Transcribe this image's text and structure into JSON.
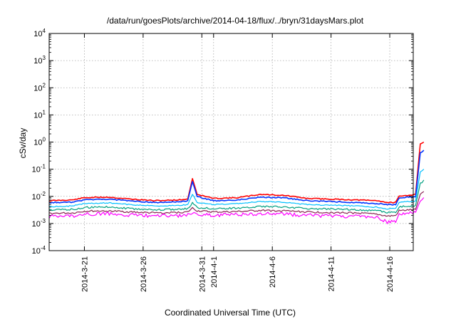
{
  "chart_data": {
    "type": "line",
    "title": "/data/run/goesPlots/archive/2014-04-18/flux/../bryn/31daysMars.plot",
    "xlabel": "Coordinated Universal Time (UTC)",
    "ylabel": "cSv/day",
    "x_range": [
      "2014-03-18",
      "2014-04-18"
    ],
    "yscale": "log",
    "ylim": [
      0.0001,
      10000
    ],
    "y_ticks": [
      {
        "value": 0.0001,
        "base": "10",
        "exp": "-4"
      },
      {
        "value": 0.001,
        "base": "10",
        "exp": "-3"
      },
      {
        "value": 0.01,
        "base": "10",
        "exp": "-2"
      },
      {
        "value": 0.1,
        "base": "10",
        "exp": "-1"
      },
      {
        "value": 1,
        "base": "10",
        "exp": "0"
      },
      {
        "value": 10,
        "base": "10",
        "exp": "1"
      },
      {
        "value": 100,
        "base": "10",
        "exp": "2"
      },
      {
        "value": 1000,
        "base": "10",
        "exp": "3"
      },
      {
        "value": 10000,
        "base": "10",
        "exp": "4"
      }
    ],
    "x_ticks": [
      {
        "label": "2014-3-21",
        "date": "2014-03-21"
      },
      {
        "label": "2014-3-26",
        "date": "2014-03-26"
      },
      {
        "label": "2014-3-31",
        "date": "2014-03-31"
      },
      {
        "label": "2014-4-1",
        "date": "2014-04-01"
      },
      {
        "label": "2014-4-6",
        "date": "2014-04-06"
      },
      {
        "label": "2014-4-11",
        "date": "2014-04-11"
      },
      {
        "label": "2014-4-16",
        "date": "2014-04-16"
      }
    ],
    "grid": true,
    "series": [
      {
        "color": "#ff0000",
        "values": [
          [
            "2014-03-18",
            0.007
          ],
          [
            "2014-03-20",
            0.0075
          ],
          [
            "2014-03-21",
            0.009
          ],
          [
            "2014-03-23",
            0.0095
          ],
          [
            "2014-03-25",
            0.008
          ],
          [
            "2014-03-27",
            0.007
          ],
          [
            "2014-03-29",
            0.0075
          ],
          [
            "2014-03-29.8",
            0.008
          ],
          [
            "2014-03-30.2",
            0.045
          ],
          [
            "2014-03-30.6",
            0.012
          ],
          [
            "2014-04-01",
            0.0085
          ],
          [
            "2014-04-03",
            0.009
          ],
          [
            "2014-04-05",
            0.012
          ],
          [
            "2014-04-07",
            0.011
          ],
          [
            "2014-04-09",
            0.0085
          ],
          [
            "2014-04-11",
            0.008
          ],
          [
            "2014-04-13",
            0.0075
          ],
          [
            "2014-04-15",
            0.007
          ],
          [
            "2014-04-15.8",
            0.006
          ],
          [
            "2014-04-16.5",
            0.006
          ],
          [
            "2014-04-16.8",
            0.01
          ],
          [
            "2014-04-17.5",
            0.011
          ],
          [
            "2014-04-18.2",
            0.012
          ],
          [
            "2014-04-18.6",
            0.9
          ],
          [
            "2014-04-18.9",
            1.0
          ]
        ]
      },
      {
        "color": "#0033ff",
        "values": [
          [
            "2014-03-18",
            0.006
          ],
          [
            "2014-03-20",
            0.0062
          ],
          [
            "2014-03-21",
            0.0075
          ],
          [
            "2014-03-23",
            0.008
          ],
          [
            "2014-03-25",
            0.0068
          ],
          [
            "2014-03-27",
            0.006
          ],
          [
            "2014-03-29",
            0.0063
          ],
          [
            "2014-03-29.8",
            0.007
          ],
          [
            "2014-03-30.2",
            0.035
          ],
          [
            "2014-03-30.6",
            0.01
          ],
          [
            "2014-04-01",
            0.007
          ],
          [
            "2014-04-03",
            0.0075
          ],
          [
            "2014-04-05",
            0.0095
          ],
          [
            "2014-04-07",
            0.009
          ],
          [
            "2014-04-09",
            0.007
          ],
          [
            "2014-04-11",
            0.0065
          ],
          [
            "2014-04-13",
            0.006
          ],
          [
            "2014-04-15",
            0.0055
          ],
          [
            "2014-04-15.8",
            0.005
          ],
          [
            "2014-04-16.5",
            0.005
          ],
          [
            "2014-04-16.8",
            0.0085
          ],
          [
            "2014-04-17.5",
            0.0095
          ],
          [
            "2014-04-18.2",
            0.0095
          ],
          [
            "2014-04-18.6",
            0.4
          ],
          [
            "2014-04-18.9",
            0.5
          ]
        ]
      },
      {
        "color": "#00bfff",
        "values": [
          [
            "2014-03-18",
            0.0042
          ],
          [
            "2014-03-20",
            0.0045
          ],
          [
            "2014-03-21",
            0.0055
          ],
          [
            "2014-03-23",
            0.0058
          ],
          [
            "2014-03-25",
            0.005
          ],
          [
            "2014-03-27",
            0.0045
          ],
          [
            "2014-03-29",
            0.0047
          ],
          [
            "2014-03-29.8",
            0.005
          ],
          [
            "2014-03-30.2",
            0.012
          ],
          [
            "2014-03-30.6",
            0.006
          ],
          [
            "2014-04-01",
            0.005
          ],
          [
            "2014-04-03",
            0.0055
          ],
          [
            "2014-04-05",
            0.0065
          ],
          [
            "2014-04-07",
            0.0062
          ],
          [
            "2014-04-09",
            0.005
          ],
          [
            "2014-04-11",
            0.0048
          ],
          [
            "2014-04-13",
            0.0045
          ],
          [
            "2014-04-15",
            0.004
          ],
          [
            "2014-04-15.8",
            0.0035
          ],
          [
            "2014-04-16.5",
            0.0036
          ],
          [
            "2014-04-16.8",
            0.006
          ],
          [
            "2014-04-17.5",
            0.0065
          ],
          [
            "2014-04-18.2",
            0.0068
          ],
          [
            "2014-04-18.6",
            0.08
          ],
          [
            "2014-04-18.9",
            0.1
          ]
        ]
      },
      {
        "color": "#00a080",
        "values": [
          [
            "2014-03-18",
            0.0032
          ],
          [
            "2014-03-20",
            0.0034
          ],
          [
            "2014-03-21",
            0.004
          ],
          [
            "2014-03-23",
            0.0042
          ],
          [
            "2014-03-25",
            0.0036
          ],
          [
            "2014-03-27",
            0.0033
          ],
          [
            "2014-03-29",
            0.0034
          ],
          [
            "2014-03-29.8",
            0.0036
          ],
          [
            "2014-03-30.2",
            0.006
          ],
          [
            "2014-03-30.6",
            0.004
          ],
          [
            "2014-04-01",
            0.0036
          ],
          [
            "2014-04-03",
            0.0038
          ],
          [
            "2014-04-05",
            0.0044
          ],
          [
            "2014-04-07",
            0.0042
          ],
          [
            "2014-04-09",
            0.0036
          ],
          [
            "2014-04-11",
            0.0035
          ],
          [
            "2014-04-13",
            0.0033
          ],
          [
            "2014-04-15",
            0.003
          ],
          [
            "2014-04-15.8",
            0.0026
          ],
          [
            "2014-04-16.5",
            0.0027
          ],
          [
            "2014-04-16.8",
            0.0042
          ],
          [
            "2014-04-17.5",
            0.0045
          ],
          [
            "2014-04-18.2",
            0.0047
          ],
          [
            "2014-04-18.6",
            0.03
          ],
          [
            "2014-04-18.9",
            0.04
          ]
        ]
      },
      {
        "color": "#8b2252",
        "values": [
          [
            "2014-03-18",
            0.0024
          ],
          [
            "2014-03-20",
            0.0025
          ],
          [
            "2014-03-21",
            0.0029
          ],
          [
            "2014-03-23",
            0.003
          ],
          [
            "2014-03-25",
            0.0027
          ],
          [
            "2014-03-27",
            0.0025
          ],
          [
            "2014-03-29",
            0.0026
          ],
          [
            "2014-03-29.8",
            0.0027
          ],
          [
            "2014-03-30.2",
            0.0038
          ],
          [
            "2014-03-30.6",
            0.003
          ],
          [
            "2014-04-01",
            0.0027
          ],
          [
            "2014-04-03",
            0.0028
          ],
          [
            "2014-04-05",
            0.0031
          ],
          [
            "2014-04-07",
            0.003
          ],
          [
            "2014-04-09",
            0.0027
          ],
          [
            "2014-04-11",
            0.0026
          ],
          [
            "2014-04-13",
            0.0025
          ],
          [
            "2014-04-15",
            0.0022
          ],
          [
            "2014-04-15.8",
            0.0019
          ],
          [
            "2014-04-16.5",
            0.002
          ],
          [
            "2014-04-16.8",
            0.003
          ],
          [
            "2014-04-17.5",
            0.0032
          ],
          [
            "2014-04-18.2",
            0.0033
          ],
          [
            "2014-04-18.6",
            0.012
          ],
          [
            "2014-04-18.9",
            0.015
          ]
        ]
      },
      {
        "color": "#ff00ff",
        "values": [
          [
            "2014-03-18",
            0.0019
          ],
          [
            "2014-03-20",
            0.002
          ],
          [
            "2014-03-21",
            0.0023
          ],
          [
            "2014-03-23",
            0.0024
          ],
          [
            "2014-03-25",
            0.0021
          ],
          [
            "2014-03-27",
            0.002
          ],
          [
            "2014-03-29",
            0.002
          ],
          [
            "2014-03-29.8",
            0.0021
          ],
          [
            "2014-03-30.2",
            0.0028
          ],
          [
            "2014-03-30.6",
            0.0023
          ],
          [
            "2014-04-01",
            0.0021
          ],
          [
            "2014-04-03",
            0.0022
          ],
          [
            "2014-04-05",
            0.0024
          ],
          [
            "2014-04-07",
            0.0023
          ],
          [
            "2014-04-09",
            0.0021
          ],
          [
            "2014-04-11",
            0.002
          ],
          [
            "2014-04-13",
            0.0019
          ],
          [
            "2014-04-15",
            0.0017
          ],
          [
            "2014-04-15.8",
            0.0012
          ],
          [
            "2014-04-16.5",
            0.0013
          ],
          [
            "2014-04-16.8",
            0.0023
          ],
          [
            "2014-04-17.5",
            0.0025
          ],
          [
            "2014-04-18.2",
            0.0026
          ],
          [
            "2014-04-18.6",
            0.007
          ],
          [
            "2014-04-18.9",
            0.009
          ]
        ]
      }
    ]
  }
}
